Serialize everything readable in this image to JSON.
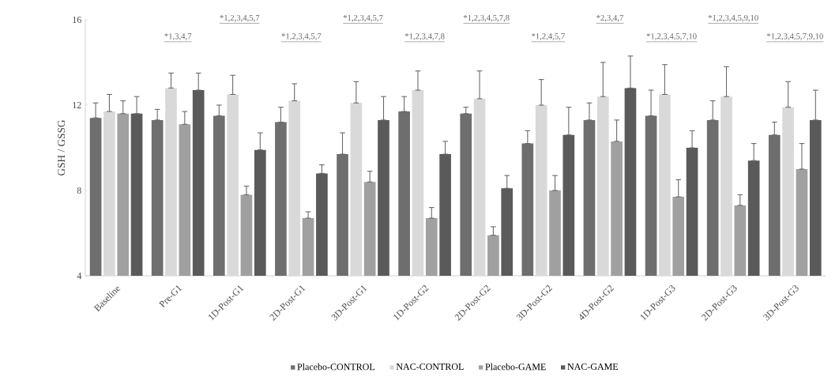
{
  "chart_data": {
    "type": "bar",
    "ylabel": "GSH / GSSG",
    "categories": [
      "Baseline",
      "Pre-G1",
      "1D-Post-G1",
      "2D-Post-G1",
      "3D-Post-G1",
      "1D-Post-G2",
      "2D-Post-G2",
      "3D-Post-G2",
      "4D-Post-G2",
      "1D-Post-G3",
      "2D-Post-G3",
      "3D-Post-G3"
    ],
    "series": [
      {
        "name": "Placebo-CONTROL",
        "color": "#6e6e6e",
        "values": [
          11.4,
          11.3,
          11.5,
          11.2,
          9.7,
          11.7,
          11.6,
          10.2,
          11.3,
          11.5,
          11.3,
          10.6
        ],
        "errors": [
          [
            11.4,
            12.1
          ],
          [
            11.3,
            11.8
          ],
          [
            11.5,
            12.0
          ],
          [
            11.2,
            11.9
          ],
          [
            9.7,
            10.7
          ],
          [
            11.7,
            12.4
          ],
          [
            11.6,
            11.9
          ],
          [
            10.2,
            10.8
          ],
          [
            11.3,
            12.1
          ],
          [
            11.5,
            12.7
          ],
          [
            11.3,
            12.2
          ],
          [
            10.6,
            11.2
          ]
        ]
      },
      {
        "name": "NAC-CONTROL",
        "color": "#d9d9d9",
        "values": [
          11.7,
          12.8,
          12.5,
          12.2,
          12.1,
          12.7,
          12.3,
          12.0,
          12.4,
          12.5,
          12.4,
          11.9
        ],
        "errors": [
          [
            11.7,
            12.5
          ],
          [
            12.8,
            13.5
          ],
          [
            12.5,
            13.4
          ],
          [
            12.2,
            13.0
          ],
          [
            12.1,
            13.1
          ],
          [
            12.7,
            13.6
          ],
          [
            12.3,
            13.6
          ],
          [
            12.0,
            13.2
          ],
          [
            12.4,
            14.0
          ],
          [
            12.5,
            13.9
          ],
          [
            12.4,
            13.8
          ],
          [
            11.9,
            13.1
          ]
        ]
      },
      {
        "name": "Placebo-GAME",
        "color": "#a0a0a0",
        "values": [
          11.6,
          11.1,
          7.8,
          6.7,
          8.4,
          6.7,
          5.9,
          8.0,
          10.3,
          7.7,
          7.3,
          9.0
        ],
        "errors": [
          [
            11.6,
            12.2
          ],
          [
            11.1,
            11.7
          ],
          [
            7.8,
            8.2
          ],
          [
            6.7,
            7.0
          ],
          [
            8.4,
            8.9
          ],
          [
            6.7,
            7.2
          ],
          [
            5.9,
            6.3
          ],
          [
            8.0,
            8.7
          ],
          [
            10.3,
            11.3
          ],
          [
            7.7,
            8.5
          ],
          [
            7.3,
            7.8
          ],
          [
            9.0,
            10.2
          ]
        ]
      },
      {
        "name": "NAC-GAME",
        "color": "#5a5a5a",
        "values": [
          11.6,
          12.7,
          9.9,
          8.8,
          11.3,
          9.7,
          8.1,
          10.6,
          12.8,
          10.0,
          9.4,
          11.3
        ],
        "errors": [
          [
            11.6,
            12.4
          ],
          [
            12.7,
            13.5
          ],
          [
            9.9,
            10.7
          ],
          [
            8.8,
            9.2
          ],
          [
            11.3,
            12.4
          ],
          [
            9.7,
            10.3
          ],
          [
            8.1,
            8.7
          ],
          [
            10.6,
            11.9
          ],
          [
            12.8,
            14.3
          ],
          [
            10.0,
            10.8
          ],
          [
            9.4,
            10.2
          ],
          [
            11.3,
            12.7
          ]
        ]
      }
    ],
    "ylim": [
      4,
      16
    ],
    "yticks": [
      4,
      8,
      12,
      16
    ],
    "grid": false,
    "legend": "bottom",
    "annotations": [
      "*1,3,4,7",
      "*1,2,3,4,5,7",
      "*1,2,3,4,5,7",
      "*1,2,3,4,5,7",
      "*1,2,3,4,7,8",
      "*1,2,3,4,5,7,8",
      "*1,2,4,5,7",
      "*2,3,4,7",
      "*1,2,3,4,5,7,10",
      "*1,2,3,4,5,9,10",
      "*1,2,3,4,5,7,9,10"
    ]
  }
}
